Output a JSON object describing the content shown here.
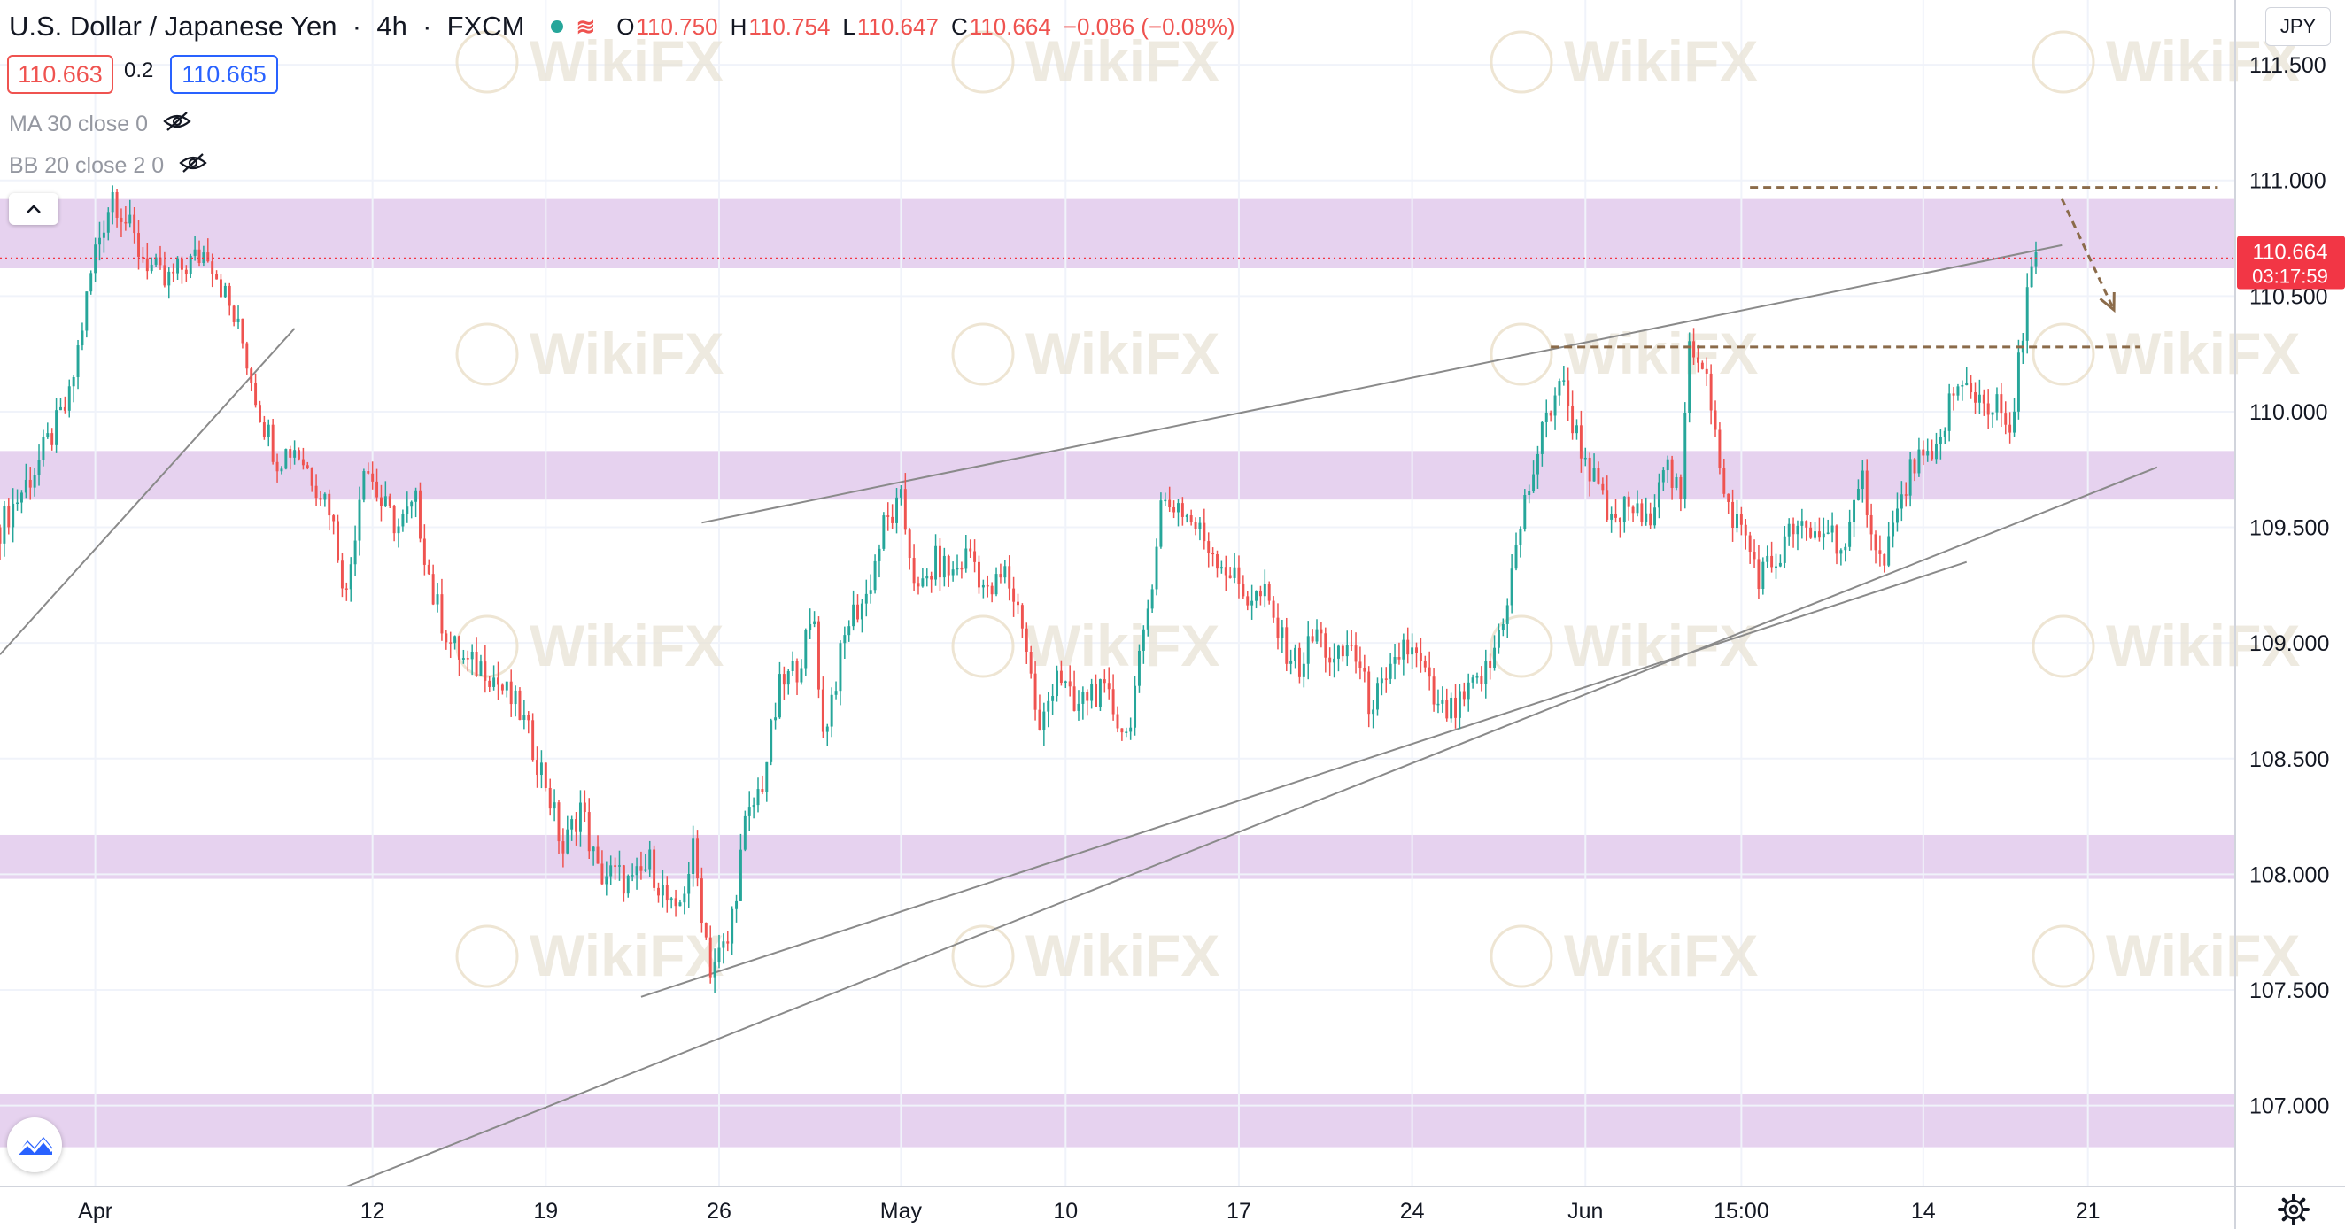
{
  "header": {
    "symbol": "U.S. Dollar / Japanese Yen",
    "interval": "4h",
    "exchange": "FXCM",
    "wave_symbol": "≋",
    "open_label": "O",
    "open": "110.750",
    "high_label": "H",
    "high": "110.754",
    "low_label": "L",
    "low": "110.647",
    "close_label": "C",
    "close": "110.664",
    "change": "−0.086 (−0.08%)"
  },
  "quote": {
    "sell": "110.663",
    "spread": "0.2",
    "buy": "110.665"
  },
  "indicators": [
    {
      "label": "MA 30 close 0",
      "icon": "eye-off-icon"
    },
    {
      "label": "BB 20 close 2 0",
      "icon": "eye-off-icon"
    }
  ],
  "currency": "JPY",
  "watermark": "WikiFX",
  "colors": {
    "up": "#26a69a",
    "down": "#ef5350",
    "zone": "#e6d2ef",
    "level": "#8b6b4a",
    "trend": "#8a8a8a",
    "badge": "#f23645"
  },
  "chart_data": {
    "type": "candlestick",
    "title": "U.S. Dollar / Japanese Yen",
    "ylabel": "JPY",
    "ylim": [
      106.65,
      111.78
    ],
    "y_ticks": [
      107.0,
      107.5,
      108.0,
      108.5,
      109.0,
      109.5,
      110.0,
      110.5,
      111.0,
      111.5
    ],
    "y_tick_labels": [
      "107.000",
      "107.500",
      "108.000",
      "108.500",
      "109.000",
      "109.500",
      "110.000",
      "110.500",
      "111.000",
      "111.500"
    ],
    "x_labels": [
      "Apr",
      "12",
      "19",
      "26",
      "May",
      "10",
      "17",
      "24",
      "Jun",
      "15:00",
      "14",
      "21"
    ],
    "x_tick_index": [
      5,
      37,
      57,
      77,
      98,
      117,
      137,
      157,
      177,
      195,
      216,
      235
    ],
    "x_index_range": [
      -6,
      252
    ],
    "current_price": "110.664",
    "countdown": "03:17:59",
    "price_path": [
      [
        -6,
        109.5
      ],
      [
        -2,
        109.75
      ],
      [
        2,
        110.05
      ],
      [
        5,
        110.7
      ],
      [
        7,
        110.95
      ],
      [
        10,
        110.7
      ],
      [
        13,
        110.55
      ],
      [
        15,
        110.62
      ],
      [
        18,
        110.7
      ],
      [
        20,
        110.5
      ],
      [
        22,
        110.3
      ],
      [
        24,
        110.0
      ],
      [
        26,
        109.8
      ],
      [
        28,
        109.85
      ],
      [
        32,
        109.6
      ],
      [
        34,
        109.2
      ],
      [
        36,
        109.8
      ],
      [
        38,
        109.6
      ],
      [
        40,
        109.5
      ],
      [
        42,
        109.6
      ],
      [
        44,
        109.2
      ],
      [
        46,
        109.0
      ],
      [
        48,
        108.9
      ],
      [
        50,
        108.9
      ],
      [
        54,
        108.7
      ],
      [
        57,
        108.4
      ],
      [
        59,
        108.1
      ],
      [
        61,
        108.3
      ],
      [
        63,
        108.0
      ],
      [
        65,
        108.0
      ],
      [
        67,
        107.95
      ],
      [
        69,
        108.05
      ],
      [
        72,
        107.8
      ],
      [
        74,
        108.1
      ],
      [
        76,
        107.6
      ],
      [
        78,
        107.7
      ],
      [
        80,
        108.2
      ],
      [
        82,
        108.4
      ],
      [
        84,
        108.8
      ],
      [
        86,
        108.9
      ],
      [
        88,
        109.1
      ],
      [
        89,
        108.6
      ],
      [
        92,
        109.1
      ],
      [
        94,
        109.2
      ],
      [
        96,
        109.5
      ],
      [
        98,
        109.6
      ],
      [
        100,
        109.2
      ],
      [
        102,
        109.35
      ],
      [
        104,
        109.3
      ],
      [
        106,
        109.4
      ],
      [
        108,
        109.2
      ],
      [
        110,
        109.3
      ],
      [
        112,
        109.1
      ],
      [
        114,
        108.6
      ],
      [
        116,
        108.9
      ],
      [
        118,
        108.7
      ],
      [
        120,
        108.8
      ],
      [
        122,
        108.75
      ],
      [
        124,
        108.6
      ],
      [
        126,
        109.0
      ],
      [
        128,
        109.6
      ],
      [
        130,
        109.6
      ],
      [
        132,
        109.5
      ],
      [
        134,
        109.4
      ],
      [
        136,
        109.3
      ],
      [
        138,
        109.2
      ],
      [
        140,
        109.2
      ],
      [
        142,
        109.0
      ],
      [
        144,
        108.9
      ],
      [
        146,
        109.05
      ],
      [
        148,
        108.9
      ],
      [
        150,
        109.0
      ],
      [
        152,
        108.75
      ],
      [
        154,
        108.8
      ],
      [
        156,
        109.0
      ],
      [
        158,
        108.9
      ],
      [
        160,
        108.7
      ],
      [
        162,
        108.7
      ],
      [
        164,
        108.8
      ],
      [
        166,
        108.9
      ],
      [
        168,
        109.2
      ],
      [
        170,
        109.6
      ],
      [
        172,
        109.9
      ],
      [
        174,
        110.15
      ],
      [
        176,
        109.9
      ],
      [
        178,
        109.7
      ],
      [
        180,
        109.5
      ],
      [
        182,
        109.6
      ],
      [
        184,
        109.5
      ],
      [
        186,
        109.8
      ],
      [
        188,
        109.6
      ],
      [
        189,
        110.3
      ],
      [
        191,
        110.2
      ],
      [
        193,
        109.6
      ],
      [
        195,
        109.5
      ],
      [
        197,
        109.3
      ],
      [
        199,
        109.35
      ],
      [
        201,
        109.5
      ],
      [
        203,
        109.45
      ],
      [
        205,
        109.5
      ],
      [
        207,
        109.4
      ],
      [
        209,
        109.7
      ],
      [
        211,
        109.35
      ],
      [
        213,
        109.55
      ],
      [
        215,
        109.8
      ],
      [
        217,
        109.75
      ],
      [
        219,
        110.05
      ],
      [
        221,
        110.1
      ],
      [
        223,
        110.05
      ],
      [
        225,
        110.0
      ],
      [
        226,
        109.85
      ],
      [
        228,
        110.55
      ],
      [
        229,
        110.66
      ]
    ],
    "zones": [
      [
        110.62,
        110.92
      ],
      [
        109.62,
        109.83
      ],
      [
        107.98,
        108.17
      ],
      [
        106.82,
        107.05
      ]
    ],
    "levels": [
      {
        "price": 110.97,
        "x0": 196,
        "x1": 250
      },
      {
        "price": 110.28,
        "x0": 173,
        "x1": 241
      }
    ],
    "trendlines": [
      [
        [
          -6,
          108.95
        ],
        [
          28,
          110.36
        ]
      ],
      [
        [
          75,
          109.52
        ],
        [
          232,
          110.72
        ]
      ],
      [
        [
          68,
          107.47
        ],
        [
          221,
          109.35
        ]
      ],
      [
        [
          34,
          106.65
        ],
        [
          243,
          109.76
        ]
      ]
    ],
    "arrow": [
      [
        232,
        110.92
      ],
      [
        238,
        110.44
      ]
    ]
  }
}
